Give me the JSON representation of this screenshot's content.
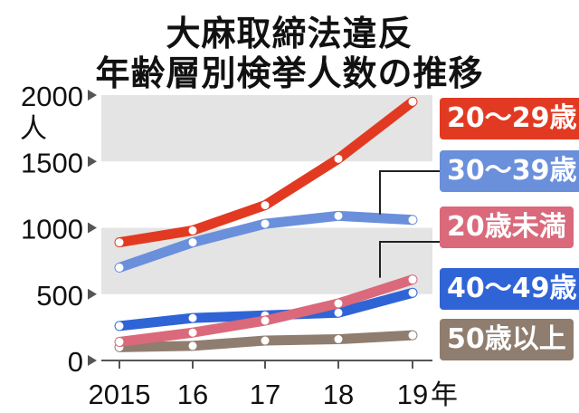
{
  "title": "大麻取締法違反",
  "subtitle": "年齢層別検挙人数の推移",
  "chart_data": {
    "type": "line",
    "title": "大麻取締法違反 年齢層別検挙人数の推移",
    "x": [
      "2015",
      "16",
      "17",
      "18",
      "19"
    ],
    "xlabel": "年",
    "ylabel": "人",
    "ylim": [
      0,
      2000
    ],
    "yticks": [
      0,
      500,
      1000,
      1500,
      2000
    ],
    "grid": "alternating shaded bands",
    "legend": "right, labels next to line ends",
    "series": [
      {
        "name": "20〜29歳",
        "color": "#e23a22",
        "values": [
          890,
          980,
          1170,
          1520,
          1950
        ]
      },
      {
        "name": "30〜39歳",
        "color": "#6a8fdb",
        "values": [
          700,
          890,
          1030,
          1090,
          1060
        ]
      },
      {
        "name": "20歳未満",
        "color": "#d9697b",
        "values": [
          140,
          210,
          300,
          430,
          610
        ]
      },
      {
        "name": "40〜49歳",
        "color": "#2f64d6",
        "values": [
          260,
          320,
          340,
          360,
          510
        ]
      },
      {
        "name": "50歳以上",
        "color": "#8f7d6f",
        "values": [
          100,
          110,
          150,
          160,
          190
        ]
      }
    ]
  }
}
